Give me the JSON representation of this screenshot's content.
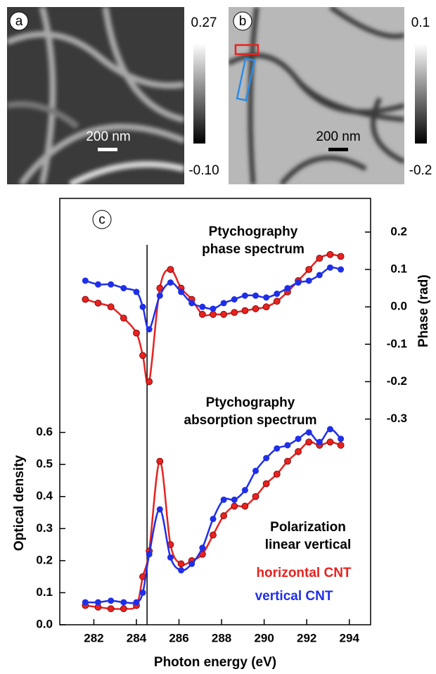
{
  "panels": [
    {
      "label": "a",
      "scale_bar": "200 nm",
      "colorbar": {
        "max": 0.27,
        "min": {
          "value": -0.1,
          "label": "-0.10"
        }
      }
    },
    {
      "label": "b",
      "scale_bar": "200 nm",
      "colorbar": {
        "max": 0.1,
        "min": -0.2
      }
    }
  ],
  "chart_data": {
    "type": "line",
    "label": "c",
    "xlabel": "Photon energy (eV)",
    "ylabel": "Optical density",
    "y2label": "Phase (rad)",
    "annotations": [
      "Ptychography",
      "phase spectrum",
      "Ptychography",
      "absorption spectrum",
      "Polarization",
      "linear vertical"
    ],
    "vertical_line_x": 284.5,
    "x": [
      281.6,
      282.2,
      282.8,
      283.4,
      284.0,
      284.3,
      284.6,
      285.1,
      285.6,
      286.1,
      286.6,
      287.1,
      287.6,
      288.1,
      288.6,
      289.1,
      289.6,
      290.1,
      290.6,
      291.1,
      291.6,
      292.1,
      292.6,
      293.1,
      293.6
    ],
    "series": [
      {
        "color": "#e8221f",
        "axis": "y2",
        "values": [
          0.02,
          0.01,
          0.0,
          -0.03,
          -0.07,
          -0.13,
          -0.2,
          0.05,
          0.1,
          0.05,
          0.02,
          -0.02,
          -0.02,
          -0.02,
          -0.015,
          -0.01,
          -0.005,
          0.0,
          0.015,
          0.04,
          0.07,
          0.1,
          0.13,
          0.14,
          0.135
        ]
      },
      {
        "color": "#1f2fe8",
        "axis": "y2",
        "values": [
          0.07,
          0.06,
          0.06,
          0.05,
          0.04,
          0.0,
          -0.06,
          0.03,
          0.065,
          0.04,
          0.01,
          0.0,
          -0.005,
          0.01,
          0.02,
          0.03,
          0.03,
          0.025,
          0.035,
          0.05,
          0.065,
          0.07,
          0.085,
          0.105,
          0.1
        ]
      },
      {
        "name": "horizontal CNT",
        "color": "#e8221f",
        "values": [
          0.06,
          0.055,
          0.05,
          0.05,
          0.06,
          0.15,
          0.23,
          0.51,
          0.25,
          0.19,
          0.2,
          0.22,
          0.28,
          0.34,
          0.37,
          0.37,
          0.4,
          0.44,
          0.47,
          0.51,
          0.54,
          0.57,
          0.56,
          0.57,
          0.56
        ]
      },
      {
        "name": "vertical CNT",
        "color": "#1f2fe8",
        "values": [
          0.07,
          0.07,
          0.075,
          0.07,
          0.07,
          0.1,
          0.22,
          0.36,
          0.21,
          0.17,
          0.19,
          0.24,
          0.33,
          0.39,
          0.39,
          0.42,
          0.48,
          0.52,
          0.55,
          0.56,
          0.58,
          0.6,
          0.57,
          0.61,
          0.58
        ]
      }
    ],
    "xlim": [
      280.4,
      295
    ],
    "xticks": [
      282,
      284,
      286,
      288,
      290,
      292,
      294
    ],
    "ylim": [
      0,
      1.33
    ],
    "yticks": [
      {
        "value": 0,
        "label": "0.0"
      },
      0.1,
      0.2,
      0.3,
      0.4,
      0.5,
      0.6
    ],
    "y2lim": [
      -0.85,
      0.29
    ],
    "y2ticks": [
      0.2,
      0.1,
      {
        "value": 0,
        "label": "0.0"
      },
      -0.1,
      -0.2,
      -0.3
    ]
  }
}
